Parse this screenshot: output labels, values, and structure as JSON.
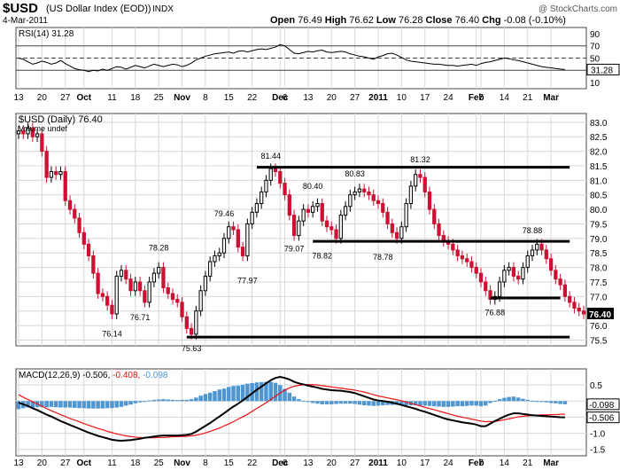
{
  "header": {
    "symbol": "$USD",
    "name": "(US Dollar Index (EOD))",
    "exchange": "INDX",
    "date": "4-Mar-2011",
    "watermark": "@ StockCharts.com",
    "quote": {
      "open_label": "Open",
      "open": "76.49",
      "high_label": "High",
      "high": "76.62",
      "low_label": "Low",
      "low": "76.28",
      "close_label": "Close",
      "close": "76.40",
      "chg_label": "Chg",
      "chg": "-0.08 (-0.10%)"
    }
  },
  "colors": {
    "up": "#000000",
    "down": "#cc1133",
    "rsi_fill": "#a06868",
    "macd_line": "#000000",
    "signal_line": "#ee1111",
    "histogram": "#4f95cf",
    "grid": "#d8d8d8",
    "label_box": "#000000"
  },
  "x_axis": {
    "labels": [
      {
        "i": 0,
        "text": "13",
        "bold": false
      },
      {
        "i": 5,
        "text": "20",
        "bold": false
      },
      {
        "i": 10,
        "text": "27",
        "bold": false
      },
      {
        "i": 14,
        "text": "Oct",
        "bold": true
      },
      {
        "i": 20,
        "text": "11",
        "bold": false
      },
      {
        "i": 25,
        "text": "18",
        "bold": false
      },
      {
        "i": 30,
        "text": "25",
        "bold": false
      },
      {
        "i": 35,
        "text": "Nov",
        "bold": true
      },
      {
        "i": 40,
        "text": "8",
        "bold": false
      },
      {
        "i": 45,
        "text": "15",
        "bold": false
      },
      {
        "i": 50,
        "text": "22",
        "bold": false
      },
      {
        "i": 56,
        "text": "Dec",
        "bold": true
      },
      {
        "i": 57,
        "text": "6",
        "bold": false
      },
      {
        "i": 62,
        "text": "13",
        "bold": false
      },
      {
        "i": 67,
        "text": "20",
        "bold": false
      },
      {
        "i": 72,
        "text": "27",
        "bold": false
      },
      {
        "i": 77,
        "text": "2011",
        "bold": true
      },
      {
        "i": 82,
        "text": "10",
        "bold": false
      },
      {
        "i": 87,
        "text": "17",
        "bold": false
      },
      {
        "i": 92,
        "text": "24",
        "bold": false
      },
      {
        "i": 98,
        "text": "Feb",
        "bold": true
      },
      {
        "i": 99,
        "text": "7",
        "bold": false
      },
      {
        "i": 104,
        "text": "14",
        "bold": false
      },
      {
        "i": 109,
        "text": "21",
        "bold": false
      },
      {
        "i": 114,
        "text": "Mar",
        "bold": true
      }
    ]
  },
  "chart_data": [
    {
      "type": "line",
      "panel": "rsi",
      "title": "RSI(14) 31.28",
      "last_value": "31.28",
      "ylim": [
        0,
        100
      ],
      "y_ticks": [
        "90",
        "70",
        "50",
        "30",
        "10"
      ],
      "levels": [
        70,
        50,
        30
      ],
      "grid": true,
      "series": [
        {
          "name": "RSI(14)",
          "values": [
            50,
            48,
            44,
            40,
            42,
            45,
            43,
            40,
            42,
            46,
            41,
            37,
            33,
            31,
            30,
            28,
            30,
            29,
            32,
            30,
            33,
            36,
            35,
            32,
            35,
            38,
            36,
            34,
            37,
            40,
            38,
            36,
            38,
            40,
            39,
            36,
            38,
            42,
            47,
            50,
            53,
            55,
            57,
            58,
            59,
            60,
            58,
            61,
            62,
            60,
            62,
            64,
            65,
            64,
            66,
            68,
            72,
            70,
            64,
            58,
            57,
            59,
            61,
            60,
            62,
            63,
            60,
            59,
            60,
            61,
            60,
            57,
            55,
            53,
            52,
            50,
            48,
            52,
            54,
            57,
            58,
            55,
            51,
            47,
            45,
            44,
            43,
            42,
            41,
            40,
            40,
            39,
            38,
            38,
            37,
            38,
            39,
            40,
            38,
            41,
            43,
            44,
            46,
            48,
            50,
            49,
            47,
            46,
            44,
            42,
            40,
            38,
            36,
            35,
            34,
            33,
            32,
            31.28
          ]
        }
      ]
    },
    {
      "type": "candlestick",
      "panel": "price",
      "title": "$USD (Daily) 76.40",
      "subtitle": "Volume undef",
      "last_value": "76.40",
      "ylim": [
        75.3,
        83.3
      ],
      "y_ticks": [
        "83.0",
        "82.5",
        "82.0",
        "81.5",
        "81.0",
        "80.5",
        "80.0",
        "79.5",
        "79.0",
        "78.5",
        "78.0",
        "77.5",
        "77.0",
        "76.5",
        "76.0",
        "75.5"
      ],
      "grid": true,
      "close": [
        82.7,
        82.6,
        82.8,
        82.5,
        82.6,
        82.0,
        81.1,
        81.3,
        81.2,
        81.3,
        80.3,
        80.0,
        79.7,
        79.2,
        78.8,
        78.4,
        77.8,
        77.1,
        77.0,
        76.7,
        76.4,
        77.7,
        77.9,
        77.6,
        77.2,
        77.5,
        77.2,
        76.8,
        77.5,
        77.8,
        78.0,
        77.3,
        77.1,
        76.9,
        76.8,
        76.3,
        75.9,
        75.7,
        76.5,
        77.2,
        77.7,
        78.2,
        78.4,
        78.5,
        79.0,
        79.4,
        79.3,
        78.7,
        78.4,
        79.5,
        79.9,
        80.2,
        80.6,
        81.0,
        81.4,
        81.3,
        80.9,
        80.5,
        79.8,
        79.1,
        79.6,
        80.0,
        79.9,
        80.1,
        80.2,
        79.6,
        79.4,
        79.3,
        79.0,
        79.8,
        80.1,
        80.5,
        80.6,
        80.7,
        80.6,
        80.5,
        80.3,
        80.2,
        79.9,
        79.5,
        79.2,
        79.0,
        79.4,
        80.2,
        80.8,
        81.2,
        81.1,
        80.6,
        80.0,
        79.5,
        79.1,
        78.9,
        78.8,
        78.6,
        78.4,
        78.3,
        78.2,
        78.0,
        77.8,
        77.5,
        77.2,
        76.9,
        77.0,
        77.5,
        77.9,
        78.0,
        77.7,
        77.6,
        78.0,
        78.4,
        78.6,
        78.8,
        78.6,
        78.3,
        77.9,
        77.6,
        77.4,
        77.0,
        76.8,
        76.6,
        76.5,
        76.4
      ],
      "labels": [
        {
          "i": 37,
          "text": "75.63",
          "pos": "below"
        },
        {
          "i": 20,
          "text": "76.14",
          "pos": "below"
        },
        {
          "i": 26,
          "text": "76.71",
          "pos": "below"
        },
        {
          "i": 30,
          "text": "78.28",
          "pos": "above"
        },
        {
          "i": 49,
          "text": "77.97",
          "pos": "below"
        },
        {
          "i": 44,
          "text": "79.46",
          "pos": "above"
        },
        {
          "i": 54,
          "text": "81.44",
          "pos": "above"
        },
        {
          "i": 59,
          "text": "79.07",
          "pos": "below"
        },
        {
          "i": 63,
          "text": "80.40",
          "pos": "above"
        },
        {
          "i": 65,
          "text": "78.82",
          "pos": "below"
        },
        {
          "i": 72,
          "text": "80.83",
          "pos": "above"
        },
        {
          "i": 78,
          "text": "78.78",
          "pos": "below"
        },
        {
          "i": 86,
          "text": "81.32",
          "pos": "above"
        },
        {
          "i": 102,
          "text": "76.88",
          "pos": "below"
        },
        {
          "i": 110,
          "text": "78.88",
          "pos": "above"
        }
      ],
      "trend_lines": [
        {
          "from_i": 51,
          "to_i": 118,
          "y": 81.45
        },
        {
          "from_i": 63,
          "to_i": 118,
          "y": 78.9
        },
        {
          "from_i": 101,
          "to_i": 116,
          "y": 76.95
        },
        {
          "from_i": 36,
          "to_i": 118,
          "y": 75.6
        }
      ]
    },
    {
      "type": "line",
      "panel": "macd",
      "title": "MACD(12,26,9) -0.506, -0.408, -0.098",
      "title_parts": {
        "macd": "MACD(12,26,9) -0.506,",
        "signal": " -0.408,",
        "hist": " -0.098"
      },
      "last_values": {
        "macd": "-0.506",
        "hist": "-0.098"
      },
      "ylim": [
        -1.7,
        1.0
      ],
      "y_ticks": [
        "0.5",
        "0.0",
        "-0.5",
        "-1.0",
        "-1.5"
      ],
      "grid": true,
      "series": [
        {
          "name": "MACD(12,26,9)",
          "values": [
            -0.05,
            -0.1,
            -0.15,
            -0.22,
            -0.28,
            -0.35,
            -0.42,
            -0.48,
            -0.55,
            -0.62,
            -0.68,
            -0.74,
            -0.8,
            -0.86,
            -0.92,
            -0.98,
            -1.03,
            -1.08,
            -1.12,
            -1.16,
            -1.2,
            -1.22,
            -1.23,
            -1.22,
            -1.21,
            -1.19,
            -1.17,
            -1.14,
            -1.12,
            -1.1,
            -1.08,
            -1.07,
            -1.07,
            -1.07,
            -1.07,
            -1.06,
            -1.05,
            -1.02,
            -0.95,
            -0.86,
            -0.77,
            -0.68,
            -0.58,
            -0.48,
            -0.38,
            -0.27,
            -0.17,
            -0.08,
            0.02,
            0.13,
            0.24,
            0.35,
            0.45,
            0.55,
            0.65,
            0.72,
            0.75,
            0.72,
            0.67,
            0.6,
            0.55,
            0.52,
            0.48,
            0.45,
            0.42,
            0.38,
            0.36,
            0.34,
            0.33,
            0.32,
            0.3,
            0.28,
            0.25,
            0.2,
            0.15,
            0.1,
            0.05,
            0.02,
            0.0,
            -0.02,
            -0.05,
            -0.08,
            -0.12,
            -0.16,
            -0.2,
            -0.24,
            -0.29,
            -0.33,
            -0.38,
            -0.43,
            -0.48,
            -0.53,
            -0.57,
            -0.6,
            -0.63,
            -0.66,
            -0.68,
            -0.7,
            -0.73,
            -0.78,
            -0.78,
            -0.7,
            -0.62,
            -0.55,
            -0.48,
            -0.42,
            -0.38,
            -0.38,
            -0.4,
            -0.42,
            -0.44,
            -0.45,
            -0.46,
            -0.47,
            -0.48,
            -0.49,
            -0.5,
            -0.506
          ]
        },
        {
          "name": "Signal",
          "values": [
            0.2,
            0.12,
            0.05,
            -0.02,
            -0.09,
            -0.16,
            -0.23,
            -0.3,
            -0.36,
            -0.42,
            -0.48,
            -0.54,
            -0.59,
            -0.64,
            -0.7,
            -0.75,
            -0.8,
            -0.85,
            -0.89,
            -0.94,
            -0.98,
            -1.02,
            -1.05,
            -1.08,
            -1.1,
            -1.12,
            -1.13,
            -1.14,
            -1.14,
            -1.14,
            -1.13,
            -1.13,
            -1.12,
            -1.11,
            -1.1,
            -1.1,
            -1.09,
            -1.08,
            -1.06,
            -1.03,
            -0.99,
            -0.94,
            -0.89,
            -0.84,
            -0.77,
            -0.71,
            -0.64,
            -0.56,
            -0.49,
            -0.41,
            -0.32,
            -0.23,
            -0.14,
            -0.05,
            0.05,
            0.15,
            0.25,
            0.34,
            0.41,
            0.46,
            0.49,
            0.51,
            0.51,
            0.51,
            0.5,
            0.48,
            0.46,
            0.44,
            0.42,
            0.4,
            0.38,
            0.36,
            0.34,
            0.31,
            0.28,
            0.24,
            0.2,
            0.16,
            0.13,
            0.1,
            0.07,
            0.04,
            0.01,
            -0.03,
            -0.07,
            -0.11,
            -0.15,
            -0.19,
            -0.23,
            -0.27,
            -0.31,
            -0.35,
            -0.39,
            -0.43,
            -0.47,
            -0.5,
            -0.53,
            -0.56,
            -0.59,
            -0.62,
            -0.64,
            -0.64,
            -0.63,
            -0.61,
            -0.58,
            -0.55,
            -0.52,
            -0.49,
            -0.47,
            -0.46,
            -0.45,
            -0.44,
            -0.43,
            -0.43,
            -0.42,
            -0.42,
            -0.41,
            -0.408
          ]
        }
      ]
    }
  ]
}
